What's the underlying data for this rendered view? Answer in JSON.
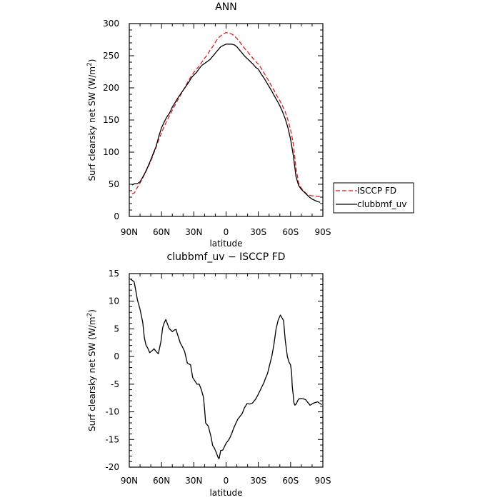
{
  "chart_data": [
    {
      "type": "line",
      "title": "ANN",
      "xlabel": "latitude",
      "ylabel": "Surf clearsky net SW (W/m",
      "ylabel_sup": "2",
      "ylabel_close": ")",
      "xlim": [
        -90,
        90
      ],
      "ylim": [
        0,
        300
      ],
      "xticks": [
        {
          "value": -90,
          "label": "90N"
        },
        {
          "value": -60,
          "label": "60N"
        },
        {
          "value": -30,
          "label": "30N"
        },
        {
          "value": 0,
          "label": "0"
        },
        {
          "value": 30,
          "label": "30S"
        },
        {
          "value": 60,
          "label": "60S"
        },
        {
          "value": 90,
          "label": "90S"
        }
      ],
      "yticks": [
        0,
        50,
        100,
        150,
        200,
        250,
        300
      ],
      "legend_position": "right",
      "series": [
        {
          "name": "ISCCP FD",
          "color": "#e41a1c",
          "dash": "dashed",
          "x": [
            -87.5,
            -85,
            -82.5,
            -80,
            -77.5,
            -75,
            -72.5,
            -70,
            -67.5,
            -65,
            -62.5,
            -60,
            -57.5,
            -55,
            -52.5,
            -50,
            -47.5,
            -45,
            -42.5,
            -40,
            -37.5,
            -35,
            -32.5,
            -30,
            -27.5,
            -25,
            -22.5,
            -20,
            -17.5,
            -15,
            -12.5,
            -10,
            -7.5,
            -5,
            -2.5,
            0,
            2.5,
            5,
            7.5,
            10,
            12.5,
            15,
            17.5,
            20,
            22.5,
            25,
            27.5,
            30,
            32.5,
            35,
            37.5,
            40,
            42.5,
            45,
            47.5,
            50,
            52.5,
            55,
            57.5,
            60,
            62.5,
            65,
            67.5,
            70,
            72.5,
            75,
            77.5,
            80,
            82.5,
            85,
            87.5
          ],
          "y": [
            35,
            37,
            45,
            52,
            60,
            68,
            77,
            86,
            97,
            108,
            120,
            130,
            140,
            149,
            157,
            165,
            173,
            181,
            188,
            196,
            203,
            211,
            218,
            224,
            229,
            234,
            240,
            246,
            251,
            258,
            264,
            271,
            277,
            281,
            284,
            286,
            285,
            284,
            281,
            277,
            272,
            266,
            261,
            256,
            251,
            246,
            241,
            237,
            231,
            224,
            217,
            210,
            202,
            195,
            187,
            180,
            172,
            163,
            150,
            135,
            113,
            75,
            52,
            44,
            39,
            35,
            33,
            32,
            32,
            31,
            31
          ]
        },
        {
          "name": "clubbmf_uv",
          "color": "#000000",
          "dash": "solid",
          "x": [
            -87.5,
            -85,
            -82.5,
            -80,
            -77.5,
            -75,
            -72.5,
            -70,
            -67.5,
            -65,
            -62.5,
            -60,
            -57.5,
            -55,
            -52.5,
            -50,
            -47.5,
            -45,
            -42.5,
            -40,
            -37.5,
            -35,
            -32.5,
            -30,
            -27.5,
            -25,
            -22.5,
            -20,
            -17.5,
            -15,
            -12.5,
            -10,
            -7.5,
            -5,
            -2.5,
            0,
            2.5,
            5,
            7.5,
            10,
            12.5,
            15,
            17.5,
            20,
            22.5,
            25,
            27.5,
            30,
            32.5,
            35,
            37.5,
            40,
            42.5,
            45,
            47.5,
            50,
            52.5,
            55,
            57.5,
            60,
            62.5,
            65,
            67.5,
            70,
            72.5,
            75,
            77.5,
            80,
            82.5,
            85,
            87.5
          ],
          "y": [
            49,
            51,
            51,
            54,
            61,
            69,
            78,
            88,
            99,
            109,
            125,
            138,
            147,
            155,
            161,
            170,
            177,
            184,
            190,
            196,
            202,
            208,
            215,
            220,
            224,
            230,
            235,
            238,
            241,
            244,
            249,
            254,
            259,
            264,
            266,
            268,
            268,
            268,
            267,
            264,
            259,
            254,
            249,
            245,
            241,
            237,
            232,
            229,
            222,
            216,
            209,
            202,
            195,
            187,
            180,
            172,
            163,
            152,
            138,
            120,
            95,
            62,
            48,
            42,
            38,
            34,
            30,
            27,
            25,
            23,
            22
          ]
        }
      ]
    },
    {
      "type": "line",
      "title": "clubbmf_uv − ISCCP FD",
      "xlabel": "latitude",
      "ylabel": "Surf clearsky net SW (W/m",
      "ylabel_sup": "2",
      "ylabel_close": ")",
      "xlim": [
        -90,
        90
      ],
      "ylim": [
        -20,
        15
      ],
      "xticks": [
        {
          "value": -90,
          "label": "90N"
        },
        {
          "value": -60,
          "label": "60N"
        },
        {
          "value": -30,
          "label": "30N"
        },
        {
          "value": 0,
          "label": "0"
        },
        {
          "value": 30,
          "label": "30S"
        },
        {
          "value": 60,
          "label": "60S"
        },
        {
          "value": 90,
          "label": "90S"
        }
      ],
      "yticks": [
        -20,
        -15,
        -10,
        -5,
        0,
        5,
        10,
        15
      ],
      "series": [
        {
          "color": "#000000",
          "dash": "solid",
          "x": [
            -88.8,
            -87.5,
            -85.5,
            -84,
            -82.5,
            -80,
            -77.5,
            -76,
            -74.5,
            -72.5,
            -71,
            -68.5,
            -67,
            -65,
            -63,
            -62,
            -60.5,
            -59,
            -57.5,
            -56,
            -54.5,
            -53,
            -51.5,
            -50,
            -48,
            -46.5,
            -45.5,
            -44,
            -42.5,
            -41,
            -38.5,
            -36,
            -33,
            -31,
            -29,
            -27,
            -25,
            -23,
            -21,
            -20,
            -19,
            -16.5,
            -14,
            -12.5,
            -11,
            -9,
            -7.5,
            -6.5,
            -5,
            -3,
            -1.5,
            -0.5,
            0,
            1.5,
            3,
            4,
            5.5,
            7,
            9,
            11,
            13,
            15,
            17,
            19.5,
            22,
            24.5,
            27.5,
            29.5,
            31.5,
            33.5,
            35.5,
            36.5,
            38.5,
            40.5,
            42.5,
            44.5,
            46.5,
            48.5,
            50.5,
            52,
            53.5,
            55,
            57,
            58.5,
            60,
            61,
            61.5,
            62,
            62.5,
            63,
            64,
            65.5,
            66.5,
            67.5,
            69,
            71,
            72.5,
            74,
            75.5,
            77,
            78,
            80,
            81.5,
            83.5,
            85,
            86,
            87.5,
            89
          ],
          "y": [
            14,
            13.8,
            13.5,
            12,
            10.3,
            8.5,
            6.2,
            3.4,
            2.1,
            1.4,
            0.7,
            1.1,
            1.4,
            0.9,
            0.5,
            1.4,
            2.8,
            5.2,
            6.1,
            6.7,
            5.9,
            5.1,
            4.8,
            4.5,
            4.8,
            4.9,
            4.2,
            3.3,
            2.4,
            1.9,
            0.9,
            -1.2,
            -1.5,
            -3.8,
            -4.4,
            -5.0,
            -5.0,
            -6.0,
            -7.4,
            -9.5,
            -12.0,
            -12.6,
            -14.5,
            -16.1,
            -16.5,
            -17.4,
            -18.2,
            -18.5,
            -17.0,
            -16.9,
            -16.3,
            -15.9,
            -15.7,
            -15.3,
            -14.9,
            -14.5,
            -13.8,
            -13.0,
            -12.1,
            -11.3,
            -10.8,
            -10.3,
            -9.3,
            -8.5,
            -8.6,
            -8.4,
            -7.7,
            -7.0,
            -6.2,
            -5.4,
            -4.6,
            -4.0,
            -3.1,
            -1.5,
            0.0,
            2.2,
            5.0,
            6.6,
            7.5,
            7.0,
            6.5,
            3.0,
            0.0,
            -1.0,
            -1.5,
            -3.0,
            -5.3,
            -6.2,
            -7.0,
            -8.3,
            -8.8,
            -8.5,
            -8.0,
            -7.7,
            -7.6,
            -7.6,
            -7.7,
            -7.8,
            -8.2,
            -8.5,
            -8.8,
            -8.6,
            -8.4,
            -8.3,
            -8.2,
            -8.3,
            -8.5,
            -8.7
          ]
        }
      ]
    }
  ]
}
